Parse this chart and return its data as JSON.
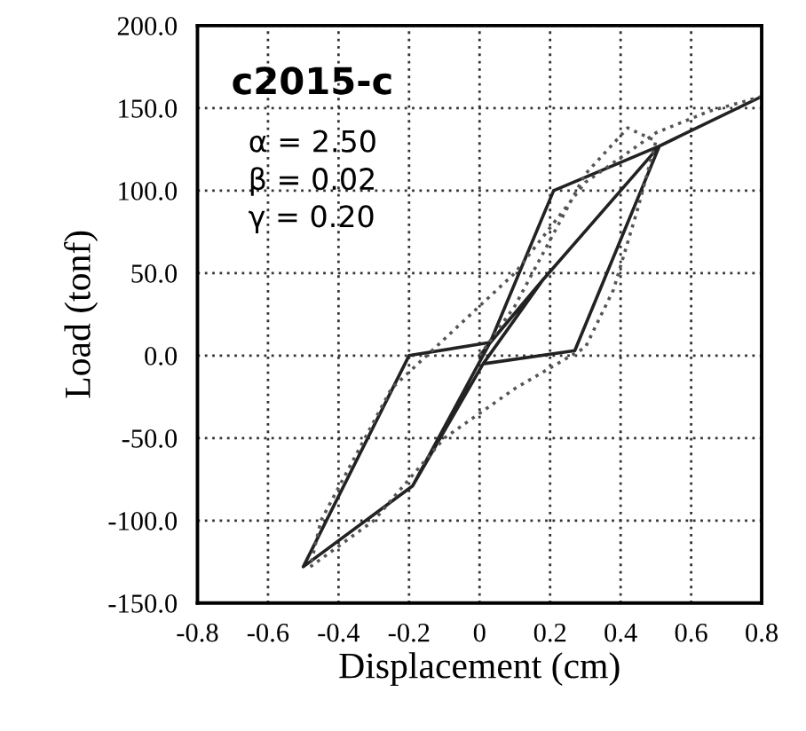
{
  "chart_data": {
    "type": "line",
    "xlabel": "Displacement (cm)",
    "ylabel": "Load (tonf)",
    "annotations": [
      "c2015-c",
      "α = 2.50",
      "β = 0.02",
      "γ = 0.20"
    ],
    "series": [
      {
        "color": "#222222",
        "line_style": "solid",
        "x": [
          0,
          0.18,
          0.03,
          -0.19,
          0.01,
          0.27,
          0.51,
          0.21,
          0.03,
          -0.2,
          -0.5,
          -0.19,
          0.01,
          0.18,
          0.51,
          0.8
        ],
        "values": [
          0,
          46,
          8,
          -79,
          -5,
          3,
          127,
          100,
          8,
          0,
          -128,
          -79,
          -5,
          46,
          127,
          157
        ]
      },
      {
        "color": "#555555",
        "line_style": "dotted",
        "x": [
          0,
          0.1,
          0.2,
          0.3,
          0.42,
          0.5,
          0.45,
          0.38,
          0.3,
          0.1,
          -0.1,
          -0.3,
          -0.48,
          -0.45,
          -0.35,
          -0.25,
          -0.1,
          0.1,
          0.3,
          0.5,
          0.65,
          0.8
        ],
        "values": [
          0,
          30,
          70,
          110,
          138,
          130,
          90,
          40,
          5,
          -20,
          -50,
          -100,
          -128,
          -100,
          -60,
          -20,
          10,
          50,
          105,
          135,
          148,
          157
        ]
      }
    ],
    "xlim": [
      -0.8,
      0.8
    ],
    "ylim": [
      -150,
      200
    ],
    "xticks": [
      -0.8,
      -0.6,
      -0.4,
      -0.2,
      0,
      0.2,
      0.4,
      0.6,
      0.8
    ],
    "yticks": [
      {
        "value": -150,
        "label": "-150.0"
      },
      {
        "value": -100,
        "label": "-100.0"
      },
      {
        "value": -50,
        "label": "-50.0"
      },
      {
        "value": 0,
        "label": "0.0"
      },
      {
        "value": 50,
        "label": "50.0"
      },
      {
        "value": 100,
        "label": "100.0"
      },
      {
        "value": 150,
        "label": "150.0"
      },
      {
        "value": 200,
        "label": "200.0"
      }
    ],
    "grid": true,
    "marker": "none",
    "legend": false
  }
}
